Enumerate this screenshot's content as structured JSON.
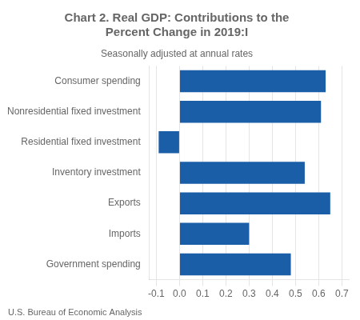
{
  "chart_data": {
    "type": "bar",
    "orientation": "horizontal",
    "title": "Chart 2. Real GDP: Contributions to the\nPercent Change in 2019:I",
    "subtitle": "Seasonally adjusted at annual rates",
    "footer": "U.S. Bureau of Economic Analysis",
    "categories": [
      "Consumer spending",
      "Nonresidential fixed investment",
      "Residential fixed investment",
      "Inventory investment",
      "Exports",
      "Imports",
      "Government spending"
    ],
    "values": [
      0.63,
      0.61,
      -0.09,
      0.54,
      0.65,
      0.3,
      0.48
    ],
    "color": "#1A5EA8",
    "xlim": [
      -0.13,
      0.73
    ],
    "xticks": [
      -0.1,
      {
        "value": 0.0,
        "label": "0.0"
      },
      0.1,
      0.2,
      0.3,
      0.4,
      0.5,
      0.6,
      0.7
    ],
    "grid": true
  }
}
